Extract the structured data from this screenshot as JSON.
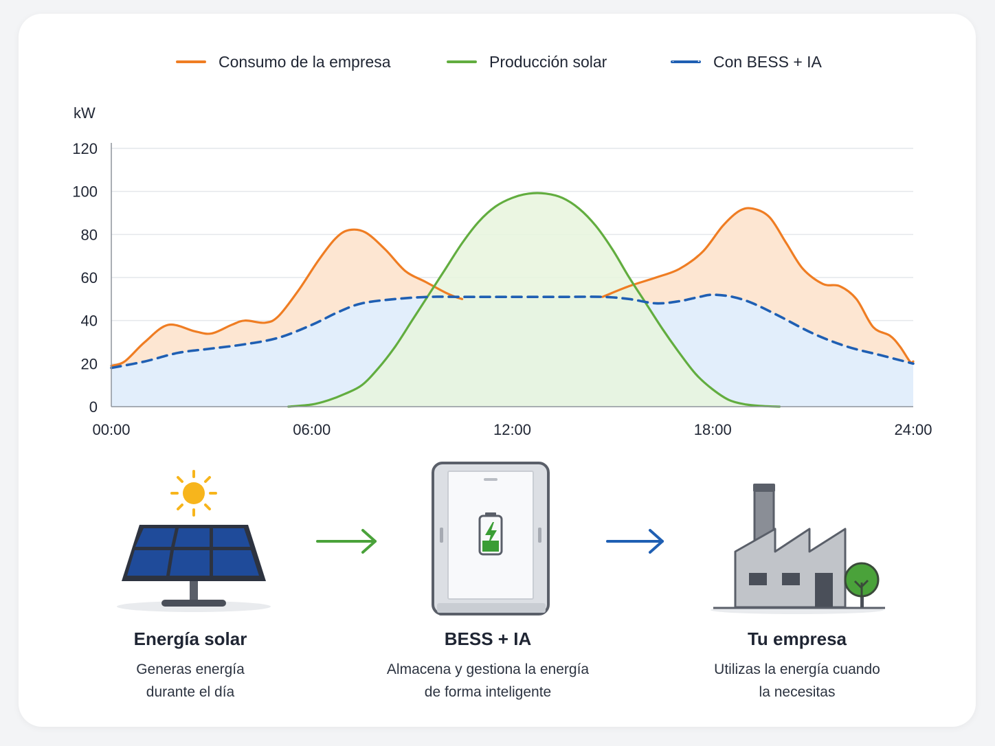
{
  "legend": [
    {
      "label": "Consumo de la empresa",
      "color": "#ef7d23",
      "style": "solid"
    },
    {
      "label": "Producción solar",
      "color": "#62ad3f",
      "style": "solid"
    },
    {
      "label": "Con BESS + IA",
      "color": "#1f5fb3",
      "style": "dashed"
    }
  ],
  "chart_data": {
    "type": "line",
    "ylabel": "kW",
    "ylim": [
      0,
      120
    ],
    "yticks": [
      0,
      20,
      40,
      60,
      80,
      100,
      120
    ],
    "xlim": [
      0,
      24
    ],
    "xticks": [
      {
        "value": 0,
        "label": "00:00"
      },
      {
        "value": 6,
        "label": "06:00"
      },
      {
        "value": 12,
        "label": "12:00"
      },
      {
        "value": 18,
        "label": "18:00"
      },
      {
        "value": 24,
        "label": "24:00"
      }
    ],
    "grid": true,
    "legend_position": "top",
    "series": [
      {
        "name": "Consumo de la empresa",
        "color": "#ef7d23",
        "fill": "#fde6d2",
        "points": [
          [
            0,
            19
          ],
          [
            0.4,
            21
          ],
          [
            1,
            30
          ],
          [
            1.7,
            38
          ],
          [
            2.5,
            35
          ],
          [
            3,
            34
          ],
          [
            3.6,
            38
          ],
          [
            4,
            40
          ],
          [
            4.6,
            39
          ],
          [
            5,
            42
          ],
          [
            5.6,
            54
          ],
          [
            6.2,
            68
          ],
          [
            6.7,
            78
          ],
          [
            7.1,
            82
          ],
          [
            7.6,
            81
          ],
          [
            8.2,
            73
          ],
          [
            8.8,
            63
          ],
          [
            9.4,
            58
          ],
          [
            10,
            53
          ],
          [
            10.3,
            51
          ],
          [
            10.5,
            50
          ]
        ]
      },
      {
        "name": "",
        "color": "#ef7d23",
        "fill": "#fde6d2",
        "points": [
          [
            14.7,
            51
          ],
          [
            15.5,
            56
          ],
          [
            16.3,
            60
          ],
          [
            17,
            64
          ],
          [
            17.7,
            72
          ],
          [
            18.3,
            84
          ],
          [
            18.8,
            91
          ],
          [
            19.2,
            92
          ],
          [
            19.7,
            88
          ],
          [
            20.2,
            76
          ],
          [
            20.7,
            64
          ],
          [
            21.3,
            57
          ],
          [
            21.8,
            56
          ],
          [
            22.3,
            50
          ],
          [
            22.8,
            37
          ],
          [
            23.3,
            33
          ],
          [
            23.6,
            28
          ],
          [
            23.9,
            21
          ],
          [
            24,
            21
          ]
        ]
      },
      {
        "name": "Producción solar",
        "color": "#62ad3f",
        "fill": "#e7f4dd",
        "points": [
          [
            5.3,
            0
          ],
          [
            6,
            1
          ],
          [
            6.5,
            3
          ],
          [
            7,
            6
          ],
          [
            7.5,
            10
          ],
          [
            8,
            18
          ],
          [
            8.5,
            28
          ],
          [
            9,
            40
          ],
          [
            9.5,
            52
          ],
          [
            10,
            64
          ],
          [
            10.5,
            76
          ],
          [
            11,
            86
          ],
          [
            11.5,
            93
          ],
          [
            12,
            97
          ],
          [
            12.5,
            99
          ],
          [
            13,
            99
          ],
          [
            13.5,
            97
          ],
          [
            14,
            92
          ],
          [
            14.5,
            84
          ],
          [
            15,
            73
          ],
          [
            15.5,
            60
          ],
          [
            16,
            48
          ],
          [
            16.5,
            36
          ],
          [
            17,
            25
          ],
          [
            17.5,
            15
          ],
          [
            18,
            8
          ],
          [
            18.5,
            3
          ],
          [
            19,
            1
          ],
          [
            19.5,
            0.3
          ],
          [
            20,
            0
          ]
        ]
      },
      {
        "name": "Con BESS + IA",
        "color": "#1f5fb3",
        "fill": "#e2eefb",
        "dashed": true,
        "points": [
          [
            0,
            18
          ],
          [
            1,
            21
          ],
          [
            2,
            25
          ],
          [
            3,
            27
          ],
          [
            4,
            29
          ],
          [
            5,
            32
          ],
          [
            6,
            38
          ],
          [
            6.8,
            44
          ],
          [
            7.5,
            48
          ],
          [
            8.5,
            50
          ],
          [
            9.5,
            51
          ],
          [
            10.5,
            51
          ],
          [
            12,
            51
          ],
          [
            13.5,
            51
          ],
          [
            14.7,
            51
          ],
          [
            15.5,
            50
          ],
          [
            16.3,
            48
          ],
          [
            17,
            49
          ],
          [
            17.6,
            51
          ],
          [
            18,
            52
          ],
          [
            18.6,
            51
          ],
          [
            19.2,
            48
          ],
          [
            20,
            42
          ],
          [
            21,
            34
          ],
          [
            22,
            28
          ],
          [
            23,
            24
          ],
          [
            24,
            20
          ]
        ]
      }
    ]
  },
  "flow": [
    {
      "title": "Energía solar",
      "desc_line1": "Generas energía",
      "desc_line2": "durante el día"
    },
    {
      "title": "BESS + IA",
      "desc_line1": "Almacena y gestiona la energía",
      "desc_line2": "de forma inteligente"
    },
    {
      "title": "Tu empresa",
      "desc_line1": "Utilizas la energía cuando",
      "desc_line2": "la necesitas"
    }
  ],
  "icons": [
    "solar-panel-icon",
    "sun-icon",
    "arrow-right-icon",
    "battery-cabinet-icon",
    "battery-charging-icon",
    "factory-icon",
    "tree-icon"
  ]
}
